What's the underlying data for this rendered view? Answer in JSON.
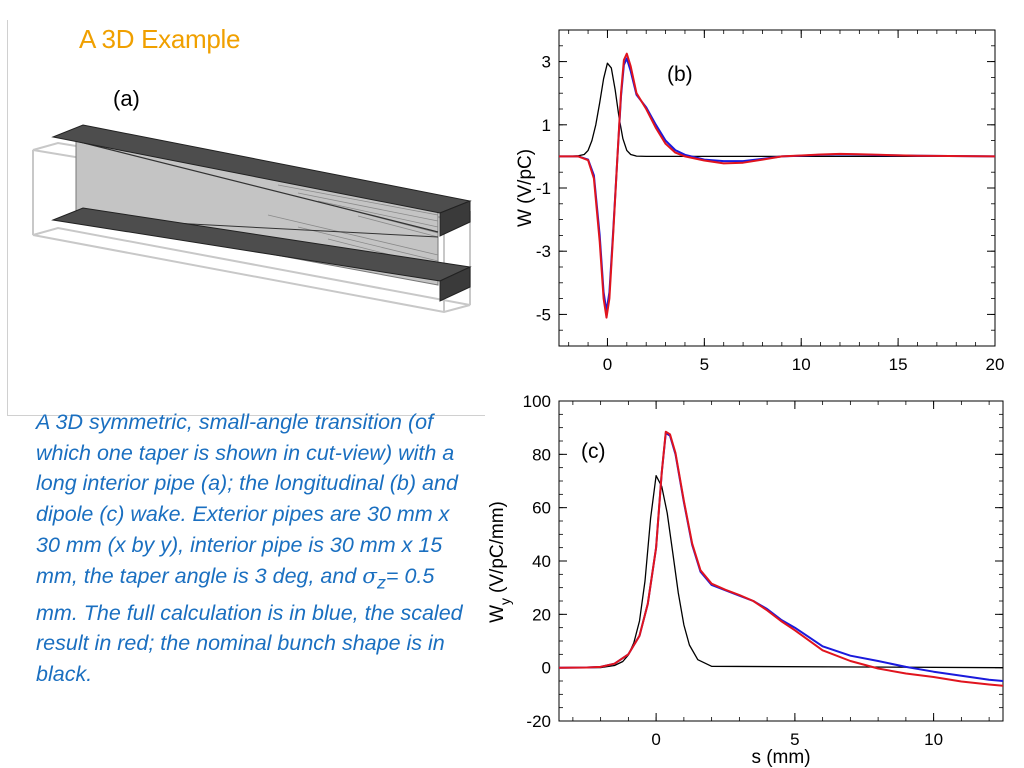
{
  "slide": {
    "title": "A 3D Example",
    "panel_a_label": "(a)",
    "caption_pre": "A 3D symmetric, small-angle transition (of which one taper is shown in cut-view) with a long interior pipe (a); the longitudinal (b) and dipole (c) wake. Exterior pipes are 30 mm x 30 mm (x by y), interior pipe is 30 mm x 15 mm, the taper angle is 3 deg, and ",
    "caption_sigma": "σ",
    "caption_sub": "z",
    "caption_post": "= 0.5 mm. The full calculation is in blue, the scaled result in red; the nominal bunch shape is in black."
  },
  "colors": {
    "title": "#f0a000",
    "caption": "#1a6fc0",
    "full_calc": "#1a1adc",
    "scaled": "#e0141e",
    "bunch": "#000000"
  },
  "chart_data": [
    {
      "type": "line",
      "panel_label": "(b)",
      "ylabel": "W (V/pC)",
      "xlabel": "",
      "xlim": [
        -2.5,
        20
      ],
      "ylim": [
        -6,
        4
      ],
      "xticks": [
        0,
        5,
        10,
        15,
        20
      ],
      "yticks": [
        3,
        1,
        -1,
        -3,
        -5
      ],
      "series": [
        {
          "color": "#000000",
          "width": 1.3,
          "x": [
            -2.5,
            -2,
            -1.5,
            -1.2,
            -1,
            -0.8,
            -0.6,
            -0.4,
            -0.2,
            0,
            0.2,
            0.4,
            0.6,
            0.8,
            1,
            1.2,
            1.5,
            2,
            20
          ],
          "y": [
            0,
            0,
            0.02,
            0.06,
            0.19,
            0.5,
            1.0,
            1.7,
            2.46,
            2.95,
            2.8,
            2.1,
            1.22,
            0.56,
            0.19,
            0.06,
            0.01,
            0,
            0
          ]
        },
        {
          "color": "#1a1adc",
          "width": 2,
          "x": [
            -2.5,
            -1.5,
            -1,
            -0.7,
            -0.4,
            -0.2,
            -0.05,
            0.1,
            0.3,
            0.5,
            0.7,
            0.85,
            1.0,
            1.2,
            1.5,
            2,
            2.5,
            3,
            3.5,
            4,
            5,
            6,
            7,
            8,
            9,
            10,
            11,
            12,
            13,
            14,
            16,
            20
          ],
          "y": [
            0,
            0,
            -0.1,
            -0.6,
            -2.5,
            -4.3,
            -4.9,
            -4.3,
            -2.3,
            -0.2,
            1.9,
            2.9,
            3.1,
            2.7,
            1.95,
            1.55,
            1.0,
            0.5,
            0.2,
            0.05,
            -0.1,
            -0.15,
            -0.15,
            -0.08,
            0,
            0.02,
            0.05,
            0.07,
            0.06,
            0.04,
            0.02,
            0
          ]
        },
        {
          "color": "#e0141e",
          "width": 2,
          "x": [
            -2.5,
            -1.5,
            -1,
            -0.7,
            -0.4,
            -0.2,
            -0.05,
            0.1,
            0.3,
            0.5,
            0.7,
            0.85,
            1.0,
            1.2,
            1.5,
            2,
            2.5,
            3,
            3.5,
            4,
            5,
            6,
            7,
            8,
            9,
            10,
            11,
            12,
            13,
            14,
            16,
            20
          ],
          "y": [
            0,
            0,
            -0.12,
            -0.7,
            -2.7,
            -4.5,
            -5.1,
            -4.5,
            -2.4,
            -0.2,
            2.0,
            3.05,
            3.25,
            2.85,
            2.0,
            1.5,
            0.9,
            0.4,
            0.12,
            0,
            -0.13,
            -0.22,
            -0.2,
            -0.1,
            0,
            0.03,
            0.06,
            0.08,
            0.07,
            0.05,
            0.02,
            0
          ]
        }
      ]
    },
    {
      "type": "line",
      "panel_label": "(c)",
      "ylabel_main": "W",
      "ylabel_sub": "y",
      "ylabel_rest": "(V/pC/mm)",
      "xlabel": "s (mm)",
      "xlim": [
        -3.5,
        12.5
      ],
      "ylim": [
        -20,
        100
      ],
      "xticks": [
        0,
        5,
        10
      ],
      "yticks": [
        100,
        80,
        60,
        40,
        20,
        0,
        -20
      ],
      "series": [
        {
          "color": "#000000",
          "width": 1.3,
          "x": [
            -3.5,
            -2,
            -1.5,
            -1.2,
            -1,
            -0.8,
            -0.6,
            -0.4,
            -0.2,
            0,
            0.2,
            0.4,
            0.6,
            0.8,
            1,
            1.2,
            1.5,
            2,
            12.5
          ],
          "y": [
            0,
            0.02,
            0.8,
            2.3,
            4.8,
            9.4,
            17.5,
            32.5,
            56,
            72,
            68,
            58,
            43,
            28,
            16,
            8.5,
            3,
            0.5,
            0
          ]
        },
        {
          "color": "#1a1adc",
          "width": 2,
          "x": [
            -3.5,
            -2.5,
            -2,
            -1.5,
            -1,
            -0.6,
            -0.3,
            0,
            0.2,
            0.35,
            0.5,
            0.7,
            1,
            1.3,
            1.6,
            2,
            2.5,
            3,
            3.5,
            4,
            4.5,
            5,
            6,
            7,
            8,
            9,
            10,
            11,
            12,
            12.5
          ],
          "y": [
            0,
            0.05,
            0.3,
            1.5,
            5,
            12,
            24,
            45,
            73,
            88,
            87,
            80,
            62,
            46,
            36,
            31,
            29,
            27,
            25,
            22,
            18,
            15,
            8,
            4.5,
            2.5,
            0.3,
            -1.5,
            -3,
            -4.5,
            -5
          ]
        },
        {
          "color": "#e0141e",
          "width": 2,
          "x": [
            -3.5,
            -2.5,
            -2,
            -1.5,
            -1,
            -0.6,
            -0.3,
            0,
            0.2,
            0.35,
            0.5,
            0.7,
            1,
            1.3,
            1.6,
            2,
            2.5,
            3,
            3.5,
            4,
            4.5,
            5,
            6,
            7,
            8,
            9,
            10,
            11,
            12,
            12.5
          ],
          "y": [
            0,
            0.05,
            0.3,
            1.5,
            5,
            12,
            24,
            45,
            73,
            88.5,
            87.5,
            80.5,
            62.5,
            46.5,
            36.5,
            31.5,
            29.2,
            27.2,
            25,
            21.5,
            17.5,
            14,
            6.5,
            2.5,
            -0.3,
            -2.2,
            -3.5,
            -5.2,
            -6.3,
            -6.8
          ]
        }
      ]
    }
  ]
}
